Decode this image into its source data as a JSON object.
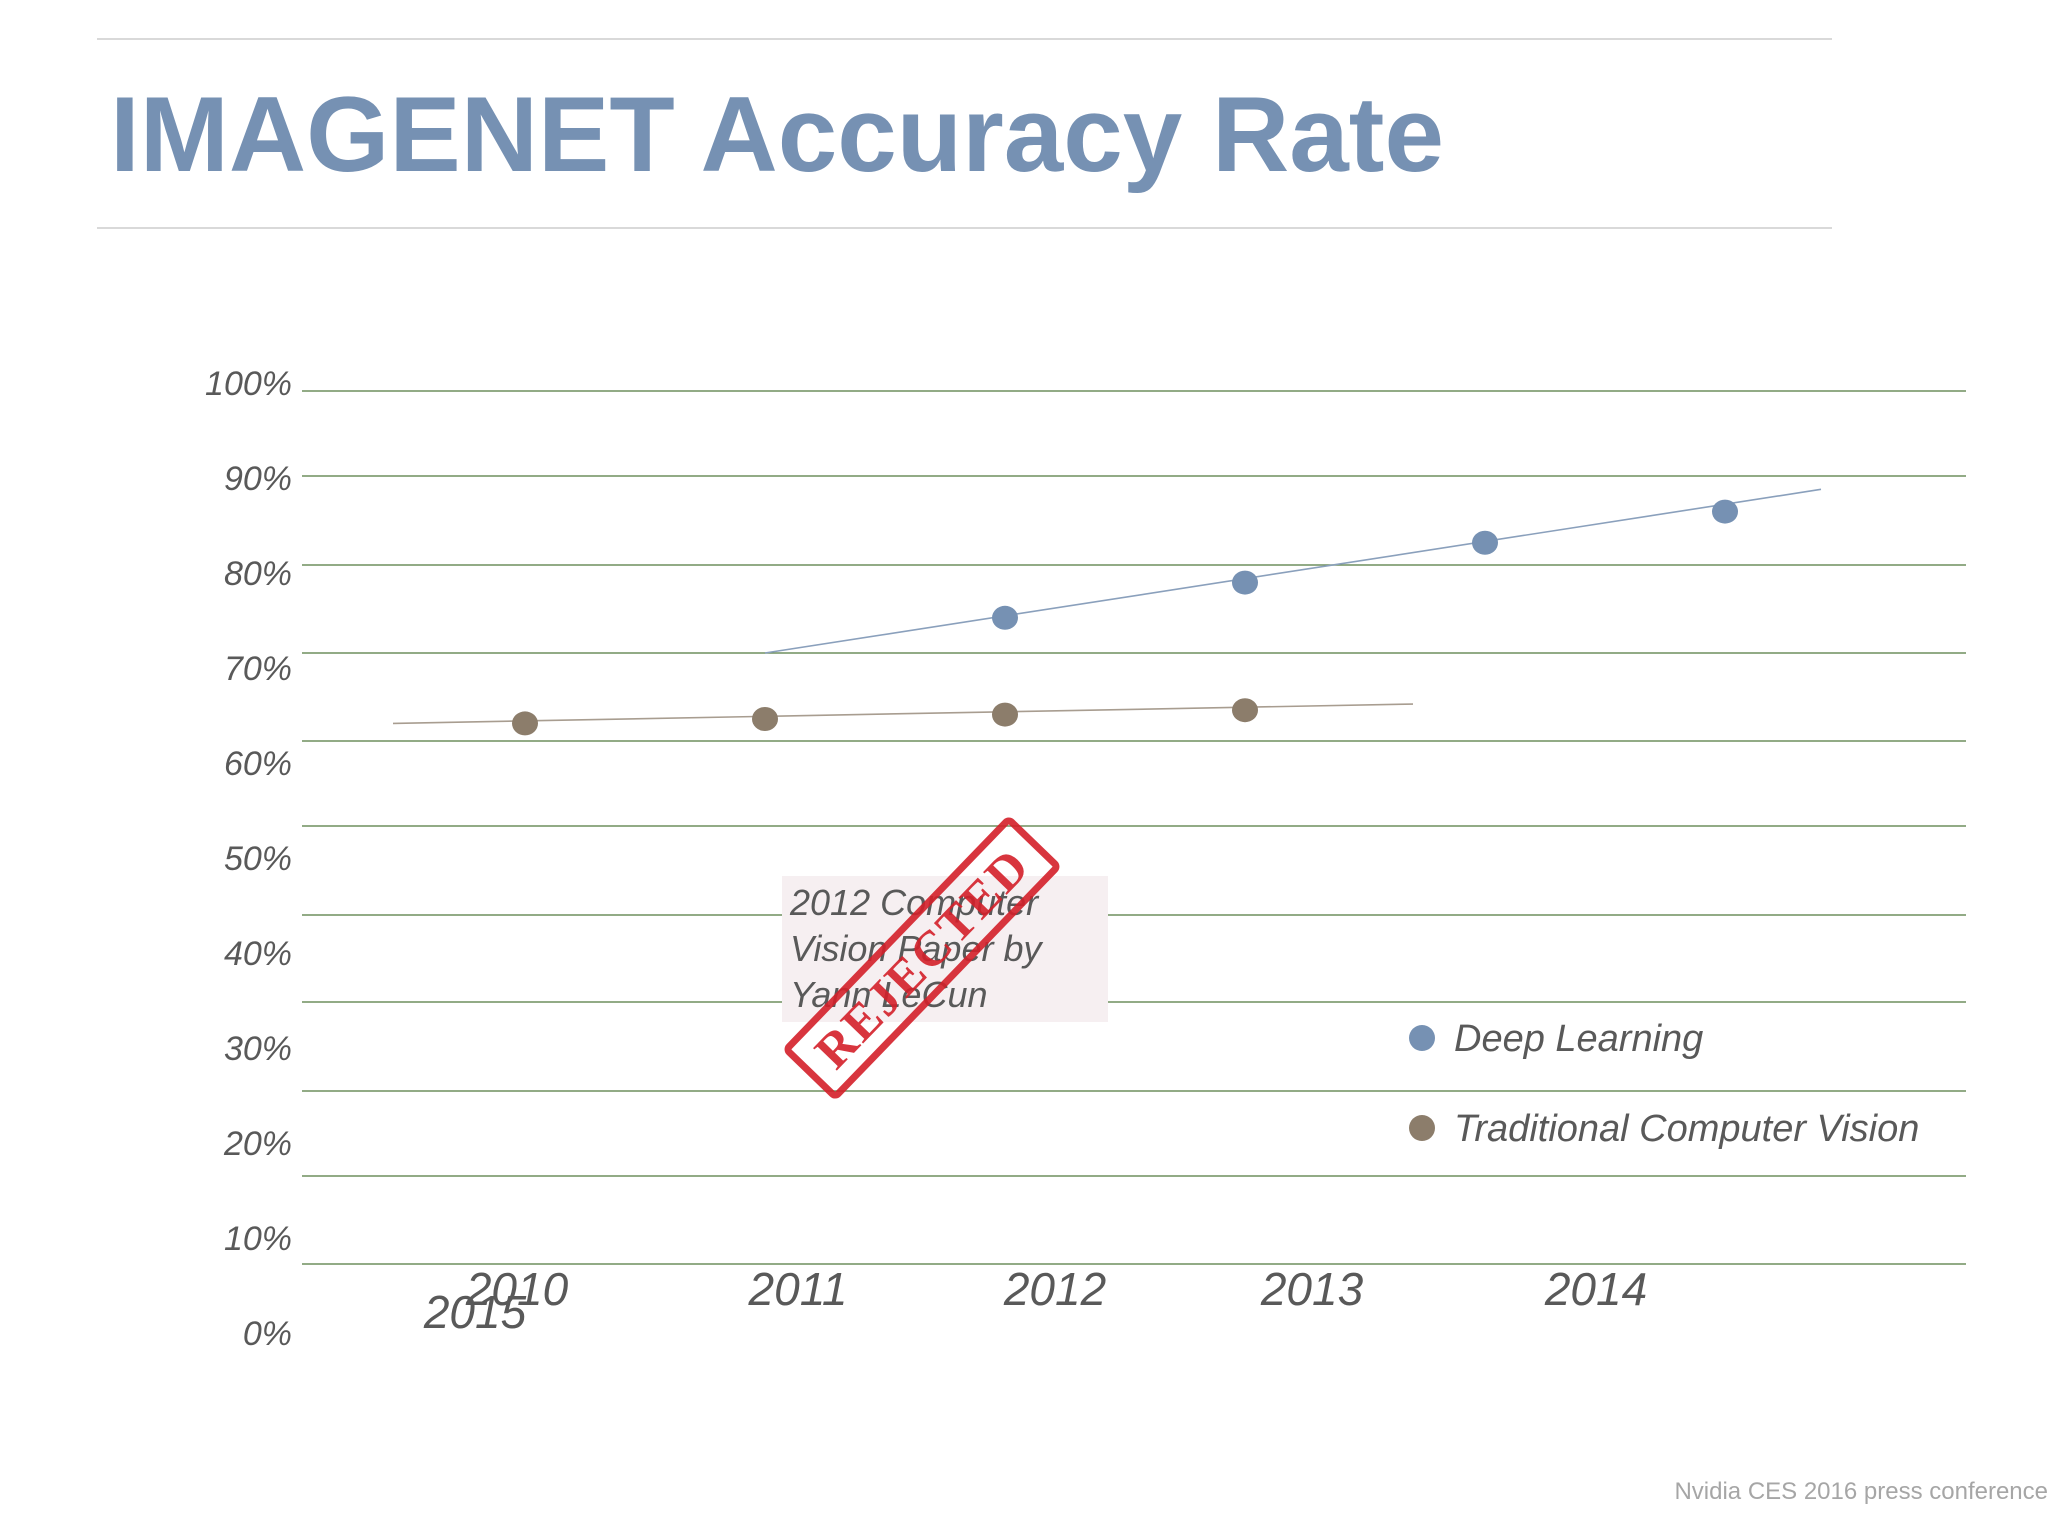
{
  "title": "IMAGENET Accuracy Rate",
  "credit": "Nvidia CES 2016 press conference",
  "colors": {
    "accent": "#7691b3",
    "deep_learning": "#7691b3",
    "traditional_cv": "#8c7d6b",
    "gridline": "#6f8f5f",
    "stamp": "#d4202a"
  },
  "annotation": {
    "lines": [
      "2012 Computer",
      "Vision Paper by",
      "Yann LeCun"
    ],
    "stamp_text": "REJECTED"
  },
  "chart_data": {
    "type": "scatter",
    "title": "IMAGENET Accuracy Rate",
    "xlabel": "",
    "ylabel": "",
    "ylim": [
      0,
      100
    ],
    "y_ticks": [
      "0%",
      "10%",
      "20%",
      "30%",
      "40%",
      "50%",
      "60%",
      "70%",
      "80%",
      "90%",
      "100%"
    ],
    "x_ticks": [
      "2010",
      "2011",
      "2012",
      "2013",
      "2014",
      "2015"
    ],
    "grid": true,
    "legend": "right",
    "series": [
      {
        "name": "Deep Learning",
        "color": "#7691b3",
        "x": [
          2012,
          2013,
          2014,
          2015
        ],
        "y": [
          84,
          88,
          92.5,
          96
        ],
        "trendline": [
          [
            2011,
            80
          ],
          [
            2015.4,
            98.5
          ]
        ]
      },
      {
        "name": "Traditional Computer Vision",
        "color": "#8c7d6b",
        "x": [
          2010,
          2011,
          2012,
          2013
        ],
        "y": [
          72,
          72.5,
          73,
          73.5
        ],
        "trendline": [
          [
            2009.45,
            72
          ],
          [
            2013.7,
            74.2
          ]
        ]
      }
    ]
  }
}
